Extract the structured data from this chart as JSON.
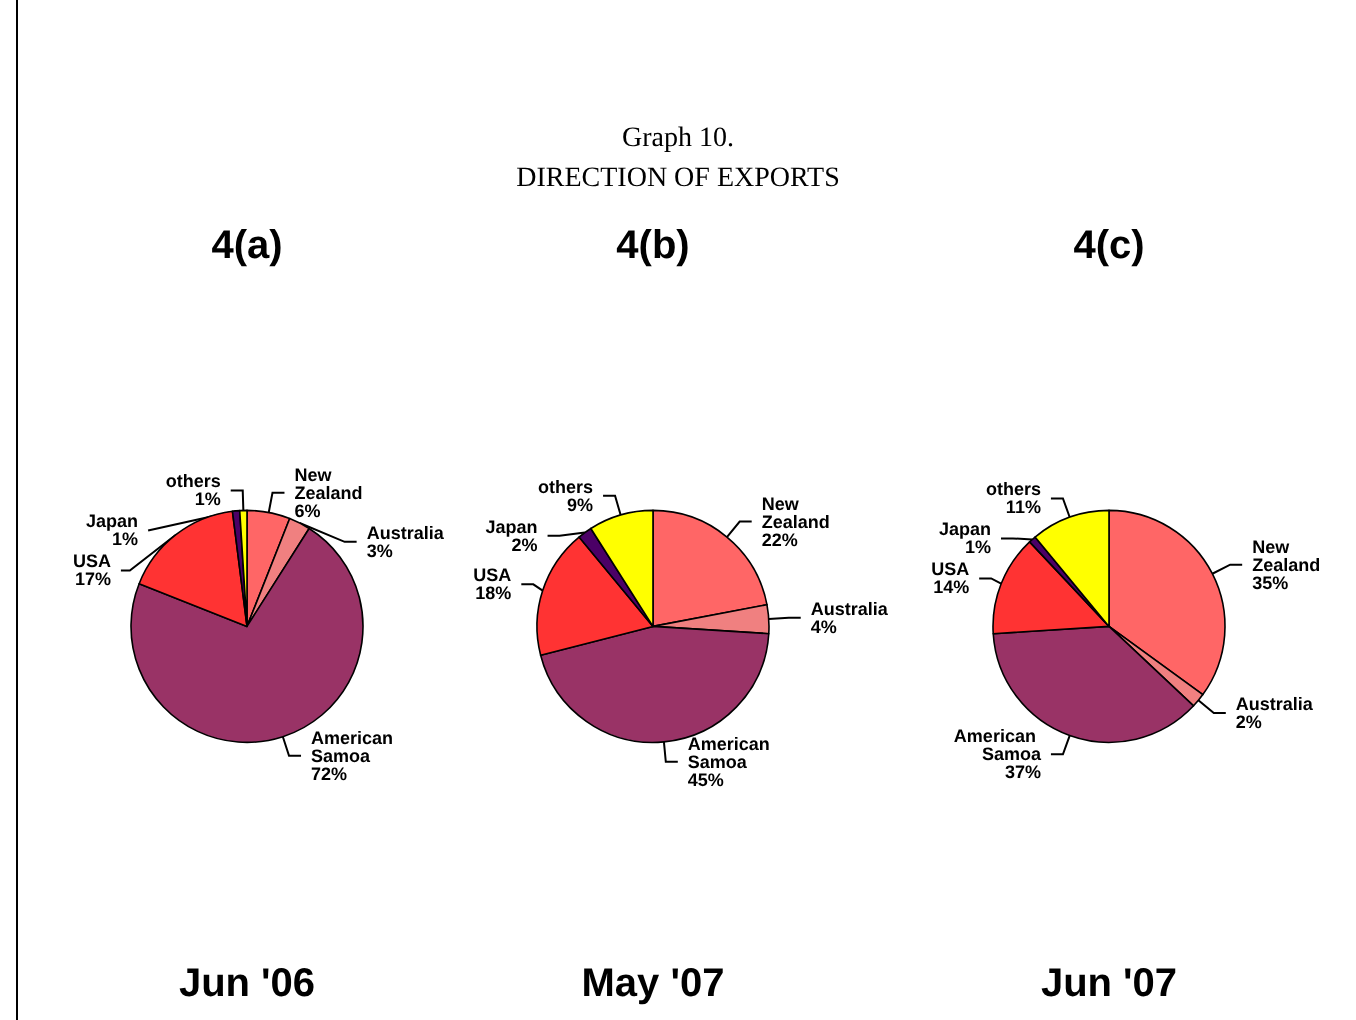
{
  "chart_data": [
    {
      "type": "other",
      "title": "Graph 10.",
      "subtitle": "DIRECTION OF EXPORTS"
    },
    {
      "type": "pie",
      "title": "4(a)",
      "categories": [
        "New Zealand",
        "Australia",
        "American Samoa",
        "USA",
        "Japan",
        "others"
      ],
      "values": [
        6,
        3,
        72,
        17,
        1,
        1
      ],
      "value_labels": [
        "6%",
        "3%",
        "72%",
        "17%",
        "1%",
        "1%"
      ],
      "colors": [
        "#ff6666",
        "#f08080",
        "#993366",
        "#ff3333",
        "#4b0066",
        "#ffff00"
      ],
      "annotations": [
        "Jun '06"
      ]
    },
    {
      "type": "pie",
      "title": "4(b)",
      "categories": [
        "New Zealand",
        "Australia",
        "American Samoa",
        "USA",
        "Japan",
        "others"
      ],
      "values": [
        22,
        4,
        45,
        18,
        2,
        9
      ],
      "value_labels": [
        "22%",
        "4%",
        "45%",
        "18%",
        "2%",
        "9%"
      ],
      "colors": [
        "#ff6666",
        "#f08080",
        "#993366",
        "#ff3333",
        "#4b0066",
        "#ffff00"
      ],
      "annotations": [
        "May '07"
      ]
    },
    {
      "type": "pie",
      "title": "4(c)",
      "categories": [
        "New Zealand",
        "Australia",
        "American Samoa",
        "USA",
        "Japan",
        "others"
      ],
      "values": [
        35,
        2,
        37,
        14,
        1,
        11
      ],
      "value_labels": [
        "35%",
        "2%",
        "37%",
        "14%",
        "1%",
        "11%"
      ],
      "colors": [
        "#ff6666",
        "#f08080",
        "#993366",
        "#ff3333",
        "#4b0066",
        "#ffff00"
      ],
      "annotations": [
        "Jun '07"
      ]
    }
  ]
}
